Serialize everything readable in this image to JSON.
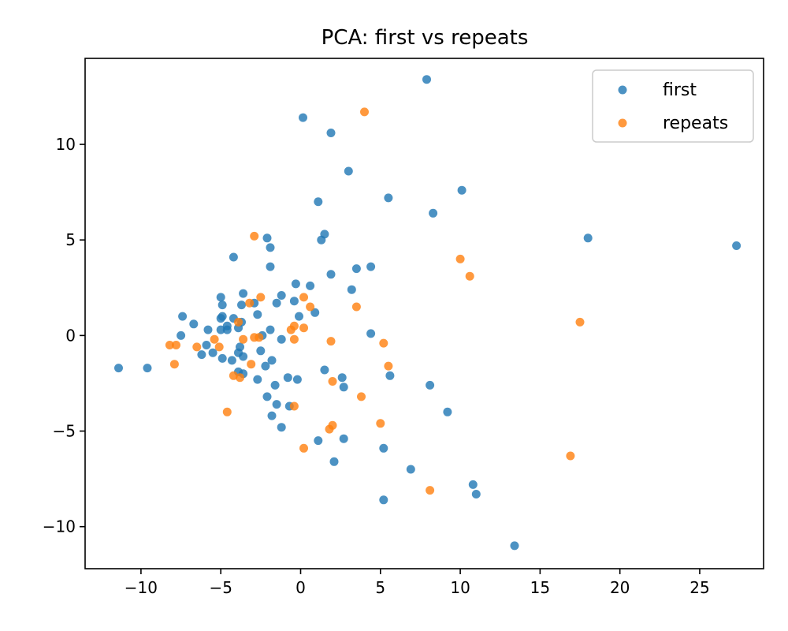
{
  "chart_data": {
    "type": "scatter",
    "title": "PCA: first vs repeats",
    "xlabel": "",
    "ylabel": "",
    "xlim": [
      -13.5,
      29
    ],
    "ylim": [
      -12.2,
      14.5
    ],
    "xticks": [
      -10,
      -5,
      0,
      5,
      10,
      15,
      20,
      25
    ],
    "yticks": [
      -10,
      -5,
      0,
      5,
      10
    ],
    "xtick_labels": [
      "−10",
      "−5",
      "0",
      "5",
      "10",
      "15",
      "20",
      "25"
    ],
    "ytick_labels": [
      "−10",
      "−5",
      "0",
      "5",
      "10"
    ],
    "grid": false,
    "legend_position": "top-right",
    "series": [
      {
        "name": "first",
        "color": "#1f77b4",
        "points": [
          [
            7.9,
            13.4
          ],
          [
            0.15,
            11.4
          ],
          [
            1.9,
            10.6
          ],
          [
            3.0,
            8.6
          ],
          [
            10.1,
            7.6
          ],
          [
            5.5,
            7.2
          ],
          [
            1.1,
            7.0
          ],
          [
            8.3,
            6.4
          ],
          [
            18.0,
            5.1
          ],
          [
            27.3,
            4.7
          ],
          [
            1.5,
            5.3
          ],
          [
            1.3,
            5.0
          ],
          [
            -2.1,
            5.1
          ],
          [
            -1.9,
            4.6
          ],
          [
            -4.2,
            4.1
          ],
          [
            -1.9,
            3.6
          ],
          [
            3.5,
            3.5
          ],
          [
            4.4,
            3.6
          ],
          [
            1.9,
            3.2
          ],
          [
            -0.3,
            2.7
          ],
          [
            0.6,
            2.6
          ],
          [
            3.2,
            2.4
          ],
          [
            -3.6,
            2.2
          ],
          [
            -1.2,
            2.1
          ],
          [
            -5.0,
            2.0
          ],
          [
            -4.9,
            1.6
          ],
          [
            -3.7,
            1.6
          ],
          [
            -2.9,
            1.7
          ],
          [
            -1.5,
            1.7
          ],
          [
            -0.4,
            1.8
          ],
          [
            0.9,
            1.2
          ],
          [
            -7.4,
            1.0
          ],
          [
            -4.9,
            1.0
          ],
          [
            -5.0,
            0.9
          ],
          [
            -4.2,
            0.9
          ],
          [
            -3.7,
            0.7
          ],
          [
            -2.7,
            1.1
          ],
          [
            -0.1,
            1.0
          ],
          [
            -6.7,
            0.6
          ],
          [
            -4.6,
            0.5
          ],
          [
            -3.9,
            0.4
          ],
          [
            -1.9,
            0.3
          ],
          [
            -5.8,
            0.3
          ],
          [
            -5.0,
            0.3
          ],
          [
            -4.6,
            0.3
          ],
          [
            -2.4,
            0.0
          ],
          [
            -7.5,
            0.0
          ],
          [
            -1.2,
            -0.2
          ],
          [
            4.4,
            0.1
          ],
          [
            -5.9,
            -0.5
          ],
          [
            -3.8,
            -0.6
          ],
          [
            -6.2,
            -1.0
          ],
          [
            -5.5,
            -0.9
          ],
          [
            -3.9,
            -0.9
          ],
          [
            -3.6,
            -1.1
          ],
          [
            -2.5,
            -0.8
          ],
          [
            -11.4,
            -1.7
          ],
          [
            -9.6,
            -1.7
          ],
          [
            -4.3,
            -1.3
          ],
          [
            -1.8,
            -1.3
          ],
          [
            -2.2,
            -1.6
          ],
          [
            -3.9,
            -1.9
          ],
          [
            -3.6,
            -2.0
          ],
          [
            1.5,
            -1.8
          ],
          [
            5.6,
            -2.1
          ],
          [
            -4.9,
            -1.2
          ],
          [
            -2.7,
            -2.3
          ],
          [
            -1.6,
            -2.6
          ],
          [
            -0.8,
            -2.2
          ],
          [
            -0.2,
            -2.3
          ],
          [
            2.6,
            -2.2
          ],
          [
            2.7,
            -2.7
          ],
          [
            8.1,
            -2.6
          ],
          [
            -2.1,
            -3.2
          ],
          [
            -1.5,
            -3.6
          ],
          [
            -0.7,
            -3.7
          ],
          [
            9.2,
            -4.0
          ],
          [
            -1.8,
            -4.2
          ],
          [
            -1.2,
            -4.8
          ],
          [
            2.7,
            -5.4
          ],
          [
            1.1,
            -5.5
          ],
          [
            5.2,
            -5.9
          ],
          [
            2.1,
            -6.6
          ],
          [
            6.9,
            -7.0
          ],
          [
            10.8,
            -7.8
          ],
          [
            11.0,
            -8.3
          ],
          [
            5.2,
            -8.6
          ],
          [
            13.4,
            -11.0
          ]
        ]
      },
      {
        "name": "repeats",
        "color": "#ff7f0e",
        "points": [
          [
            4.0,
            11.7
          ],
          [
            -2.9,
            5.2
          ],
          [
            10.0,
            4.0
          ],
          [
            10.6,
            3.1
          ],
          [
            -2.5,
            2.0
          ],
          [
            0.2,
            2.0
          ],
          [
            -3.2,
            1.7
          ],
          [
            0.6,
            1.5
          ],
          [
            3.5,
            1.5
          ],
          [
            -3.9,
            0.7
          ],
          [
            17.5,
            0.7
          ],
          [
            -0.6,
            0.3
          ],
          [
            -0.4,
            0.5
          ],
          [
            0.2,
            0.4
          ],
          [
            -3.6,
            -0.2
          ],
          [
            -5.4,
            -0.2
          ],
          [
            -2.9,
            -0.1
          ],
          [
            -2.6,
            -0.1
          ],
          [
            -0.4,
            -0.2
          ],
          [
            1.9,
            -0.3
          ],
          [
            5.2,
            -0.4
          ],
          [
            -8.2,
            -0.5
          ],
          [
            -7.8,
            -0.5
          ],
          [
            -6.5,
            -0.6
          ],
          [
            -5.1,
            -0.6
          ],
          [
            -7.9,
            -1.5
          ],
          [
            -3.1,
            -1.5
          ],
          [
            5.5,
            -1.6
          ],
          [
            -4.2,
            -2.1
          ],
          [
            -3.8,
            -2.2
          ],
          [
            2.0,
            -2.4
          ],
          [
            3.8,
            -3.2
          ],
          [
            -0.4,
            -3.7
          ],
          [
            -4.6,
            -4.0
          ],
          [
            5.0,
            -4.6
          ],
          [
            2.0,
            -4.7
          ],
          [
            1.8,
            -4.9
          ],
          [
            0.2,
            -5.9
          ],
          [
            16.9,
            -6.3
          ],
          [
            8.1,
            -8.1
          ]
        ]
      }
    ]
  }
}
